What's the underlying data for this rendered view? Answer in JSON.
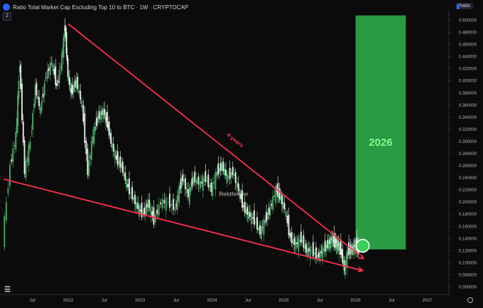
{
  "header": {
    "title": "Ratio Total Market Cap Excluding Top 10 to BTC · 1W · CRYPTOCAP",
    "indicator_pill": "2",
    "scale_label": "Ratio"
  },
  "annotations": {
    "trend_label": "4 years",
    "target_year": "2026",
    "watermark": "Rektfencer"
  },
  "colors": {
    "background": "#0b0b0b",
    "candle_up": "#4caf6b",
    "candle_down": "#e8f5e9",
    "trendline": "#ff2f4e",
    "target_box": "#2ea84a",
    "target_text": "#7dff8a"
  },
  "chart_data": {
    "type": "line",
    "y_axis_labels": [
      "0.500000",
      "0.480000",
      "0.460000",
      "0.440000",
      "0.420000",
      "0.400000",
      "0.380000",
      "0.360000",
      "0.340000",
      "0.320000",
      "0.300000",
      "0.280000",
      "0.260000",
      "0.240000",
      "0.220000",
      "0.200000",
      "0.180000",
      "0.160000",
      "0.140000",
      "0.120000",
      "0.100000",
      "0.080000",
      "0.060000"
    ],
    "x_axis_labels": [
      "Jul",
      "2022",
      "Jul",
      "2023",
      "Jul",
      "2024",
      "Jul",
      "2025",
      "Jul",
      "2026",
      "Jul",
      "2027"
    ],
    "ylim": [
      0.05,
      0.51
    ],
    "xlim": [
      2021.05,
      2027.3
    ],
    "series": [
      {
        "x": [
          2021.1,
          2021.2,
          2021.28,
          2021.33,
          2021.4,
          2021.48,
          2021.55,
          2021.62,
          2021.7,
          2021.78,
          2021.85,
          2021.92,
          2021.96,
          2022.0,
          2022.05,
          2022.12,
          2022.2,
          2022.28,
          2022.35,
          2022.42,
          2022.5,
          2022.55,
          2022.6,
          2022.68,
          2022.75,
          2022.82,
          2022.9,
          2022.98,
          2023.05,
          2023.12,
          2023.2,
          2023.3,
          2023.4,
          2023.5,
          2023.55,
          2023.6,
          2023.68,
          2023.75,
          2023.85,
          2023.92,
          2024.0,
          2024.08,
          2024.15,
          2024.22,
          2024.3,
          2024.38,
          2024.45,
          2024.52,
          2024.6,
          2024.68,
          2024.75,
          2024.82,
          2024.9,
          2024.95,
          2025.02,
          2025.1,
          2025.18,
          2025.25,
          2025.32,
          2025.4,
          2025.48,
          2025.55,
          2025.62,
          2025.68,
          2025.72,
          2025.76,
          2025.8,
          2025.85,
          2025.9,
          2025.95,
          2026.0,
          2026.05
        ],
        "values": [
          0.14,
          0.26,
          0.31,
          0.43,
          0.25,
          0.3,
          0.39,
          0.35,
          0.41,
          0.43,
          0.39,
          0.44,
          0.49,
          0.41,
          0.38,
          0.4,
          0.36,
          0.25,
          0.31,
          0.34,
          0.35,
          0.33,
          0.3,
          0.27,
          0.26,
          0.23,
          0.21,
          0.19,
          0.18,
          0.2,
          0.17,
          0.2,
          0.2,
          0.19,
          0.22,
          0.24,
          0.21,
          0.24,
          0.23,
          0.24,
          0.22,
          0.25,
          0.26,
          0.24,
          0.25,
          0.22,
          0.19,
          0.18,
          0.17,
          0.15,
          0.17,
          0.19,
          0.22,
          0.21,
          0.19,
          0.14,
          0.13,
          0.14,
          0.12,
          0.12,
          0.11,
          0.12,
          0.13,
          0.14,
          0.13,
          0.13,
          0.12,
          0.09,
          0.12,
          0.12,
          0.13,
          0.12
        ]
      }
    ],
    "upper_trendline": {
      "x": [
        2022.0,
        2026.05
      ],
      "values": [
        0.494,
        0.113
      ]
    },
    "lower_trendline": {
      "x": [
        2021.1,
        2026.1
      ],
      "values": [
        0.238,
        0.087
      ]
    },
    "target_zone": {
      "x": [
        2026.0,
        2026.7
      ],
      "values": [
        0.122,
        0.508
      ]
    },
    "target_point": {
      "x": 2026.1,
      "value": 0.128
    },
    "label_4years_at": {
      "x": 2024.2,
      "value": 0.31
    },
    "watermark_at": {
      "x": 2024.1,
      "value": 0.21
    },
    "grid": false
  }
}
